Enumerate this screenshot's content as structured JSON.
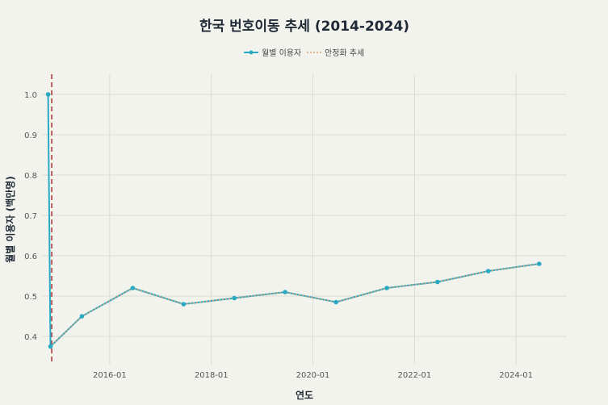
{
  "chart_data": {
    "type": "line",
    "title": "한국 번호이동 추세 (2014-2024)",
    "xlabel": "연도",
    "ylabel": "월별 이용자 (백만명)",
    "xlim": [
      "2014-09-01",
      "2024-12-31"
    ],
    "ylim": [
      0.33,
      1.05
    ],
    "x_ticks": [
      "2016-01",
      "2018-01",
      "2020-01",
      "2022-01",
      "2024-01"
    ],
    "y_ticks": [
      0.4,
      0.5,
      0.6,
      0.7,
      0.8,
      0.9,
      1.0
    ],
    "grid": true,
    "legend_position": "top-center",
    "vline": {
      "x": "2014-11-10",
      "color": "#b03030",
      "style": "dashed"
    },
    "series": [
      {
        "name": "월별 이용자",
        "color": "#2aa9c2",
        "x": [
          "2014-10-15",
          "2014-11-01",
          "2015-06-15",
          "2016-06-15",
          "2017-06-15",
          "2018-06-15",
          "2019-06-15",
          "2020-06-15",
          "2021-06-15",
          "2022-06-15",
          "2023-06-15",
          "2024-06-15"
        ],
        "values": [
          1.0,
          0.375,
          0.45,
          0.52,
          0.48,
          0.495,
          0.51,
          0.485,
          0.52,
          0.535,
          0.562,
          0.58
        ]
      },
      {
        "name": "안정화 추세",
        "color": "#d9a37a",
        "style": "dotted",
        "x": [
          "2014-11-01",
          "2015-06-15",
          "2016-06-15",
          "2017-06-15",
          "2018-06-15",
          "2019-06-15",
          "2020-06-15",
          "2021-06-15",
          "2022-06-15",
          "2023-06-15",
          "2024-06-15"
        ],
        "values": [
          0.375,
          0.45,
          0.52,
          0.48,
          0.495,
          0.51,
          0.485,
          0.52,
          0.535,
          0.562,
          0.58
        ]
      }
    ]
  }
}
